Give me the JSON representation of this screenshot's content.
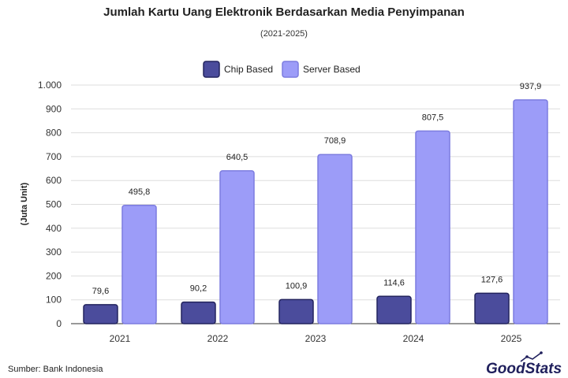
{
  "chart_data": {
    "type": "bar",
    "title": "Jumlah Kartu Uang Elektronik Berdasarkan Media Penyimpanan",
    "subtitle": "(2021-2025)",
    "ylabel": "(Juta Unit)",
    "xlabel": "",
    "categories": [
      "2021",
      "2022",
      "2023",
      "2024",
      "2025"
    ],
    "series": [
      {
        "name": "Chip Based",
        "values": [
          79.6,
          90.2,
          100.9,
          114.6,
          127.6
        ],
        "labels": [
          "79,6",
          "90,2",
          "100,9",
          "114,6",
          "127,6"
        ],
        "color": "#4b4c9c",
        "stroke": "#23245e"
      },
      {
        "name": "Server Based",
        "values": [
          495.8,
          640.5,
          708.9,
          807.5,
          937.9
        ],
        "labels": [
          "495,8",
          "640,5",
          "708,9",
          "807,5",
          "937,9"
        ],
        "color": "#9c9cf8",
        "stroke": "#7c7cdf"
      }
    ],
    "ylim": [
      0,
      1000
    ],
    "yticks": [
      0,
      100,
      200,
      300,
      400,
      500,
      600,
      700,
      800,
      900,
      1000
    ],
    "ytick_labels": [
      "0",
      "100",
      "200",
      "300",
      "400",
      "500",
      "600",
      "700",
      "800",
      "900",
      "1.000"
    ],
    "grid": true,
    "legend": "top-center"
  },
  "source": "Sumber: Bank Indonesia",
  "brand": "GoodStats"
}
